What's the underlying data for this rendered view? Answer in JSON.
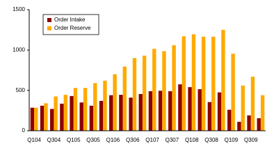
{
  "chart_data": {
    "type": "bar",
    "categories": [
      "Q104",
      null,
      "Q304",
      null,
      "Q105",
      null,
      "Q305",
      null,
      "Q106",
      null,
      "Q306",
      null,
      "Q107",
      null,
      "Q307",
      null,
      "Q108",
      null,
      "Q308",
      null,
      "Q109",
      null,
      "Q309",
      null
    ],
    "series": [
      {
        "name": "Order Intake",
        "color": "#8b0000",
        "values": [
          285,
          310,
          270,
          335,
          430,
          350,
          310,
          370,
          440,
          445,
          410,
          455,
          490,
          495,
          490,
          575,
          540,
          515,
          355,
          475,
          260,
          110,
          190,
          155
        ]
      },
      {
        "name": "Order Reserve",
        "color": "#ffaa00",
        "values": [
          285,
          340,
          425,
          445,
          530,
          530,
          590,
          620,
          700,
          795,
          900,
          930,
          1015,
          985,
          1060,
          1170,
          1195,
          1165,
          1165,
          1250,
          955,
          560,
          670,
          440
        ]
      }
    ],
    "ylim": [
      0,
      1500
    ],
    "yticks": [
      0,
      500,
      1000,
      1500
    ],
    "grid": false,
    "legend": "top-left"
  }
}
